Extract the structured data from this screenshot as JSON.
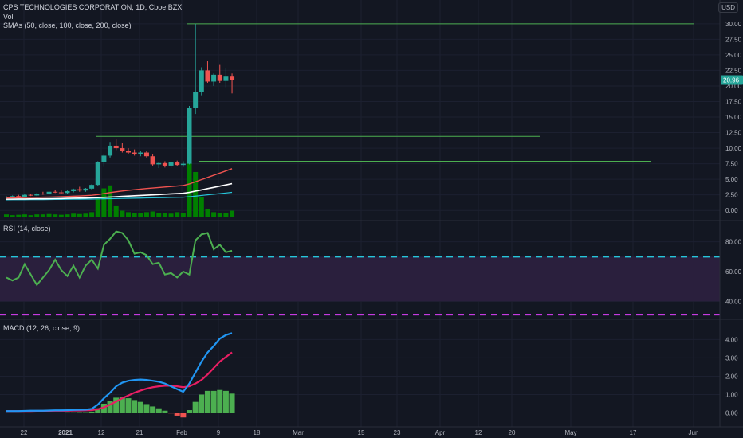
{
  "header": {
    "title": "CPS TECHNOLOGIES CORPORATION, 1D, Cboe BZX",
    "vol": "Vol",
    "smas": "SMAs (50, close, 100, close, 200, close)",
    "currency": "USD",
    "price_label": "20.96"
  },
  "rsi_title": "RSI (14, close)",
  "macd_title": "MACD (12, 26, close, 9)",
  "x_axis": {
    "labels": [
      "22",
      "2021",
      "12",
      "21",
      "Feb",
      "9",
      "18",
      "Mar",
      "15",
      "23",
      "Apr",
      "12",
      "20",
      "May",
      "17",
      "Jun"
    ]
  },
  "colors": {
    "background": "#131722",
    "up": "#26a69a",
    "down": "#ef5350",
    "volume": "#008000",
    "sma50": "#ef5350",
    "sma100": "#ffffff",
    "sma200": "#26c6da",
    "hline": "#4caf50",
    "rsi": "#4caf50",
    "rsi_band": "#2a1f3d",
    "rsi_upper": "#26c6da",
    "rsi_lower": "#e040fb",
    "macd": "#2196f3",
    "signal": "#e91e63",
    "hist": "#4caf50",
    "hist_neg": "#ef5350"
  },
  "chart_data": [
    {
      "type": "candlestick",
      "title": "CPS TECHNOLOGIES CORPORATION, 1D, Cboe BZX",
      "ylim": [
        -1,
        31
      ],
      "y_ticks": [
        "30.00",
        "27.50",
        "25.00",
        "22.50",
        "20.00",
        "17.50",
        "15.00",
        "12.50",
        "10.00",
        "7.50",
        "5.00",
        "2.50",
        "0.00"
      ],
      "last_price": 20.96,
      "candles": [
        {
          "o": 2.1,
          "h": 2.3,
          "l": 2.0,
          "c": 2.2
        },
        {
          "o": 2.2,
          "h": 2.4,
          "l": 2.1,
          "c": 2.3
        },
        {
          "o": 2.3,
          "h": 2.5,
          "l": 2.2,
          "c": 2.2
        },
        {
          "o": 2.2,
          "h": 2.6,
          "l": 2.1,
          "c": 2.5
        },
        {
          "o": 2.5,
          "h": 2.7,
          "l": 2.3,
          "c": 2.4
        },
        {
          "o": 2.4,
          "h": 2.8,
          "l": 2.3,
          "c": 2.7
        },
        {
          "o": 2.7,
          "h": 3.0,
          "l": 2.5,
          "c": 2.6
        },
        {
          "o": 2.6,
          "h": 3.1,
          "l": 2.5,
          "c": 3.0
        },
        {
          "o": 3.0,
          "h": 3.3,
          "l": 2.8,
          "c": 2.9
        },
        {
          "o": 2.9,
          "h": 3.2,
          "l": 2.7,
          "c": 2.8
        },
        {
          "o": 2.8,
          "h": 3.2,
          "l": 2.6,
          "c": 3.1
        },
        {
          "o": 3.1,
          "h": 3.5,
          "l": 2.9,
          "c": 3.4
        },
        {
          "o": 3.4,
          "h": 3.8,
          "l": 3.0,
          "c": 3.2
        },
        {
          "o": 3.2,
          "h": 3.6,
          "l": 3.0,
          "c": 3.5
        },
        {
          "o": 3.5,
          "h": 4.2,
          "l": 3.3,
          "c": 4.1
        },
        {
          "o": 4.1,
          "h": 7.9,
          "l": 4.0,
          "c": 7.8
        },
        {
          "o": 7.8,
          "h": 9.0,
          "l": 7.0,
          "c": 8.8
        },
        {
          "o": 8.8,
          "h": 11.0,
          "l": 8.5,
          "c": 10.4
        },
        {
          "o": 10.4,
          "h": 11.4,
          "l": 9.7,
          "c": 10.0
        },
        {
          "o": 10.0,
          "h": 10.8,
          "l": 9.3,
          "c": 9.6
        },
        {
          "o": 9.6,
          "h": 10.0,
          "l": 9.0,
          "c": 9.3
        },
        {
          "o": 9.3,
          "h": 9.8,
          "l": 8.8,
          "c": 9.1
        },
        {
          "o": 9.1,
          "h": 9.6,
          "l": 8.7,
          "c": 9.3
        },
        {
          "o": 9.3,
          "h": 9.5,
          "l": 8.5,
          "c": 8.7
        },
        {
          "o": 8.7,
          "h": 9.0,
          "l": 7.2,
          "c": 7.4
        },
        {
          "o": 7.4,
          "h": 7.8,
          "l": 6.8,
          "c": 7.6
        },
        {
          "o": 7.6,
          "h": 7.9,
          "l": 6.9,
          "c": 7.2
        },
        {
          "o": 7.2,
          "h": 7.8,
          "l": 6.8,
          "c": 7.7
        },
        {
          "o": 7.7,
          "h": 8.0,
          "l": 7.1,
          "c": 7.3
        },
        {
          "o": 7.3,
          "h": 7.9,
          "l": 7.0,
          "c": 7.5
        },
        {
          "o": 7.5,
          "h": 16.8,
          "l": 7.4,
          "c": 16.5
        },
        {
          "o": 16.5,
          "h": 30.0,
          "l": 15.5,
          "c": 19.0
        },
        {
          "o": 19.0,
          "h": 23.0,
          "l": 18.5,
          "c": 22.5
        },
        {
          "o": 22.5,
          "h": 24.0,
          "l": 20.5,
          "c": 20.7
        },
        {
          "o": 20.7,
          "h": 22.0,
          "l": 20.0,
          "c": 21.8
        },
        {
          "o": 21.8,
          "h": 23.5,
          "l": 20.5,
          "c": 20.8
        },
        {
          "o": 20.8,
          "h": 22.8,
          "l": 19.8,
          "c": 21.5
        },
        {
          "o": 21.5,
          "h": 22.0,
          "l": 18.8,
          "c": 20.96
        }
      ],
      "volume": [
        0.3,
        0.2,
        0.25,
        0.3,
        0.2,
        0.3,
        0.3,
        0.35,
        0.3,
        0.25,
        0.3,
        0.4,
        0.35,
        0.4,
        0.6,
        2.5,
        3.8,
        4.2,
        1.4,
        0.8,
        0.6,
        0.5,
        0.5,
        0.6,
        0.7,
        0.5,
        0.5,
        0.4,
        0.6,
        0.5,
        7.5,
        6.0,
        2.6,
        1.0,
        0.6,
        0.5,
        0.5,
        0.8
      ],
      "sma50": [
        2.0,
        2.02,
        2.04,
        2.06,
        2.08,
        2.1,
        2.12,
        2.15,
        2.18,
        2.21,
        2.24,
        2.28,
        2.32,
        2.37,
        2.43,
        2.55,
        2.7,
        2.86,
        3.0,
        3.12,
        3.23,
        3.33,
        3.43,
        3.52,
        3.6,
        3.68,
        3.76,
        3.84,
        3.92,
        4.0,
        4.25,
        4.6,
        4.95,
        5.3,
        5.65,
        6.0,
        6.35,
        6.7
      ],
      "sma100": [
        1.8,
        1.81,
        1.82,
        1.83,
        1.84,
        1.85,
        1.86,
        1.87,
        1.89,
        1.91,
        1.93,
        1.95,
        1.97,
        1.99,
        2.01,
        2.05,
        2.1,
        2.15,
        2.2,
        2.25,
        2.3,
        2.35,
        2.4,
        2.45,
        2.5,
        2.55,
        2.6,
        2.65,
        2.7,
        2.75,
        2.9,
        3.1,
        3.3,
        3.5,
        3.7,
        3.9,
        4.1,
        4.3
      ],
      "sma200": [
        1.7,
        1.71,
        1.72,
        1.72,
        1.73,
        1.74,
        1.74,
        1.75,
        1.76,
        1.77,
        1.78,
        1.79,
        1.8,
        1.81,
        1.82,
        1.84,
        1.86,
        1.88,
        1.9,
        1.92,
        1.94,
        1.96,
        1.98,
        2.0,
        2.02,
        2.04,
        2.06,
        2.08,
        2.1,
        2.12,
        2.2,
        2.3,
        2.4,
        2.5,
        2.6,
        2.7,
        2.8,
        2.9
      ],
      "hlines": [
        30.0,
        11.9,
        7.9
      ]
    },
    {
      "type": "line",
      "title": "RSI (14, close)",
      "ylim": [
        30,
        90
      ],
      "y_ticks": [
        "80.00",
        "60.00",
        "40.00"
      ],
      "band": [
        40,
        70
      ],
      "upper_line": 70,
      "lower_line": 31,
      "series": [
        {
          "values": [
            56,
            54,
            56,
            65,
            58,
            51,
            56,
            61,
            68,
            61,
            57,
            64,
            56,
            64,
            68,
            62,
            78,
            82,
            87,
            86,
            81,
            72,
            73,
            71,
            65,
            66,
            58,
            59,
            56,
            60,
            58,
            81,
            85,
            86,
            75,
            78,
            73,
            74
          ]
        }
      ]
    },
    {
      "type": "line",
      "title": "MACD (12, 26, close, 9)",
      "ylim": [
        -0.5,
        4.8
      ],
      "y_ticks": [
        "4.00",
        "3.00",
        "2.00",
        "1.00",
        "0.00"
      ],
      "series": [
        {
          "name": "MACD",
          "values": [
            0.1,
            0.1,
            0.1,
            0.11,
            0.12,
            0.12,
            0.12,
            0.13,
            0.14,
            0.14,
            0.15,
            0.16,
            0.17,
            0.18,
            0.22,
            0.45,
            0.8,
            1.1,
            1.45,
            1.65,
            1.75,
            1.8,
            1.82,
            1.8,
            1.75,
            1.7,
            1.6,
            1.45,
            1.3,
            1.15,
            1.6,
            2.2,
            2.8,
            3.3,
            3.65,
            4.05,
            4.25,
            4.35
          ]
        },
        {
          "name": "Signal",
          "values": [
            0.1,
            0.1,
            0.1,
            0.1,
            0.1,
            0.11,
            0.11,
            0.11,
            0.12,
            0.12,
            0.12,
            0.13,
            0.13,
            0.14,
            0.15,
            0.2,
            0.3,
            0.45,
            0.62,
            0.8,
            0.95,
            1.1,
            1.22,
            1.32,
            1.4,
            1.45,
            1.48,
            1.48,
            1.45,
            1.4,
            1.45,
            1.6,
            1.8,
            2.1,
            2.45,
            2.8,
            3.05,
            3.3
          ]
        }
      ],
      "histogram": [
        0.0,
        0.0,
        0.0,
        0.01,
        0.02,
        0.01,
        0.01,
        0.02,
        0.02,
        0.02,
        0.03,
        0.03,
        0.04,
        0.04,
        0.07,
        0.25,
        0.5,
        0.65,
        0.83,
        0.85,
        0.8,
        0.7,
        0.6,
        0.48,
        0.35,
        0.25,
        0.12,
        -0.03,
        -0.15,
        -0.25,
        0.15,
        0.6,
        1.0,
        1.2,
        1.2,
        1.25,
        1.2,
        1.05
      ]
    }
  ]
}
